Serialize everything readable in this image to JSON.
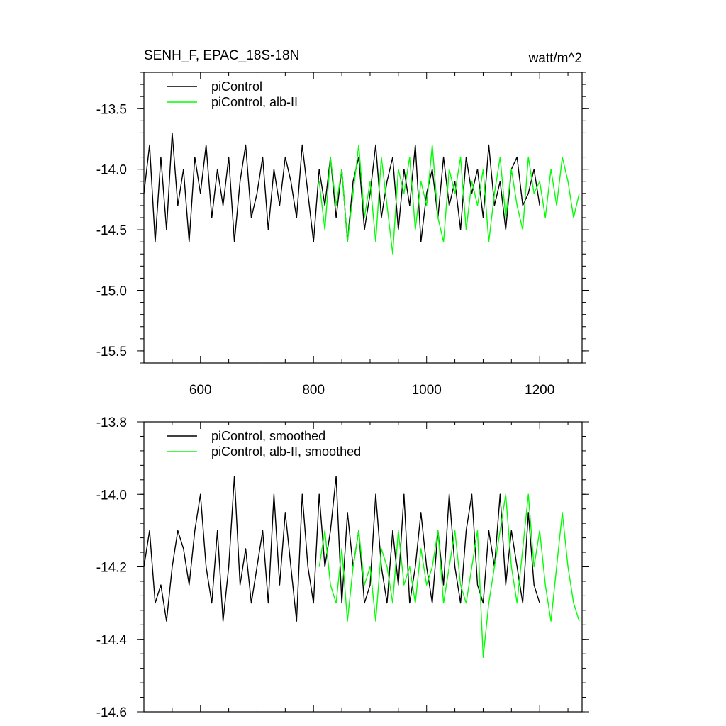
{
  "chart_data": [
    {
      "type": "line",
      "title": "SENH_F, EPAC_18S-18N",
      "units": "watt/m^2",
      "xlabel": "",
      "ylabel": "",
      "xlim": [
        500,
        1275
      ],
      "ylim": [
        -15.6,
        -13.2
      ],
      "xticks": [
        600,
        800,
        1000,
        1200
      ],
      "xtick_labels": [
        "600",
        "800",
        "1000",
        "1200"
      ],
      "yticks": [
        -13.5,
        -14.0,
        -14.5,
        -15.0,
        -15.5
      ],
      "ytick_labels": [
        "-13.5",
        "-14.0",
        "-14.5",
        "-15.0",
        "-15.5"
      ],
      "grid": false,
      "legend_position": "top-left",
      "series": [
        {
          "name": "piControl",
          "color": "#000000",
          "x": [
            500,
            510,
            520,
            530,
            540,
            550,
            560,
            570,
            580,
            590,
            600,
            610,
            620,
            630,
            640,
            650,
            660,
            670,
            680,
            690,
            700,
            710,
            720,
            730,
            740,
            750,
            760,
            770,
            780,
            790,
            800,
            810,
            820,
            830,
            840,
            850,
            860,
            870,
            880,
            890,
            900,
            910,
            920,
            930,
            940,
            950,
            960,
            970,
            980,
            990,
            1000,
            1010,
            1020,
            1030,
            1040,
            1050,
            1060,
            1070,
            1080,
            1090,
            1100,
            1110,
            1120,
            1130,
            1140,
            1150,
            1160,
            1170,
            1180,
            1190,
            1200
          ],
          "values": [
            -14.2,
            -13.8,
            -14.6,
            -13.9,
            -14.5,
            -13.7,
            -14.3,
            -14.0,
            -14.6,
            -13.9,
            -14.2,
            -13.8,
            -14.4,
            -14.0,
            -14.3,
            -13.9,
            -14.6,
            -14.1,
            -13.8,
            -14.4,
            -14.2,
            -13.9,
            -14.5,
            -14.0,
            -14.3,
            -13.9,
            -14.1,
            -14.4,
            -13.8,
            -14.2,
            -14.6,
            -14.0,
            -14.3,
            -13.9,
            -14.4,
            -14.0,
            -14.6,
            -14.1,
            -13.9,
            -14.5,
            -14.2,
            -13.8,
            -14.4,
            -14.1,
            -13.9,
            -14.5,
            -14.0,
            -14.3,
            -13.8,
            -14.6,
            -14.2,
            -14.0,
            -14.4,
            -13.9,
            -14.3,
            -14.1,
            -14.5,
            -13.9,
            -14.2,
            -14.0,
            -14.4,
            -13.8,
            -14.3,
            -14.1,
            -14.5,
            -14.0,
            -13.9,
            -14.3,
            -14.2,
            -14.0,
            -14.3
          ]
        },
        {
          "name": "piControl, alb-II",
          "color": "#00ff00",
          "x": [
            810,
            820,
            830,
            840,
            850,
            860,
            870,
            880,
            890,
            900,
            910,
            920,
            930,
            940,
            950,
            960,
            970,
            980,
            990,
            1000,
            1010,
            1020,
            1030,
            1040,
            1050,
            1060,
            1070,
            1080,
            1090,
            1100,
            1110,
            1120,
            1130,
            1140,
            1150,
            1160,
            1170,
            1180,
            1190,
            1200,
            1210,
            1220,
            1230,
            1240,
            1250,
            1260,
            1270
          ],
          "values": [
            -14.1,
            -14.5,
            -13.9,
            -14.3,
            -14.0,
            -14.6,
            -14.2,
            -13.8,
            -14.4,
            -14.1,
            -14.6,
            -13.9,
            -14.3,
            -14.7,
            -14.0,
            -14.2,
            -13.9,
            -14.5,
            -14.1,
            -14.3,
            -13.8,
            -14.4,
            -14.6,
            -14.0,
            -14.2,
            -13.9,
            -14.5,
            -14.1,
            -14.3,
            -14.0,
            -14.6,
            -14.2,
            -13.9,
            -14.4,
            -14.0,
            -14.3,
            -14.5,
            -13.9,
            -14.2,
            -14.1,
            -14.4,
            -14.0,
            -14.3,
            -13.9,
            -14.1,
            -14.4,
            -14.2
          ]
        }
      ]
    },
    {
      "type": "line",
      "title": "",
      "xlabel": "",
      "ylabel": "",
      "xlim": [
        500,
        1275
      ],
      "ylim": [
        -14.6,
        -13.8
      ],
      "xticks": [
        600,
        800,
        1000,
        1200
      ],
      "xtick_labels": [],
      "yticks": [
        -13.8,
        -14.0,
        -14.2,
        -14.4,
        -14.6
      ],
      "ytick_labels": [
        "-13.8",
        "-14.0",
        "-14.2",
        "-14.4",
        "-14.6"
      ],
      "grid": false,
      "legend_position": "top-left",
      "series": [
        {
          "name": "piControl, smoothed",
          "color": "#000000",
          "x": [
            500,
            510,
            520,
            530,
            540,
            550,
            560,
            570,
            580,
            590,
            600,
            610,
            620,
            630,
            640,
            650,
            660,
            670,
            680,
            690,
            700,
            710,
            720,
            730,
            740,
            750,
            760,
            770,
            780,
            790,
            800,
            810,
            820,
            830,
            840,
            850,
            860,
            870,
            880,
            890,
            900,
            910,
            920,
            930,
            940,
            950,
            960,
            970,
            980,
            990,
            1000,
            1010,
            1020,
            1030,
            1040,
            1050,
            1060,
            1070,
            1080,
            1090,
            1100,
            1110,
            1120,
            1130,
            1140,
            1150,
            1160,
            1170,
            1180,
            1190,
            1200
          ],
          "values": [
            -14.2,
            -14.1,
            -14.3,
            -14.25,
            -14.35,
            -14.2,
            -14.1,
            -14.15,
            -14.25,
            -14.1,
            -14.0,
            -14.2,
            -14.3,
            -14.1,
            -14.35,
            -14.2,
            -13.95,
            -14.25,
            -14.15,
            -14.3,
            -14.2,
            -14.1,
            -14.3,
            -14.0,
            -14.25,
            -14.05,
            -14.2,
            -14.35,
            -14.0,
            -14.2,
            -14.3,
            -14.0,
            -14.2,
            -14.1,
            -13.95,
            -14.3,
            -14.05,
            -14.2,
            -14.1,
            -14.3,
            -14.25,
            -14.0,
            -14.2,
            -14.3,
            -14.1,
            -14.25,
            -14.0,
            -14.3,
            -14.2,
            -14.05,
            -14.2,
            -14.3,
            -14.1,
            -14.25,
            -14.0,
            -14.2,
            -14.3,
            -14.1,
            -14.0,
            -14.25,
            -14.3,
            -14.1,
            -14.2,
            -14.0,
            -14.25,
            -14.1,
            -14.2,
            -14.3,
            -14.05,
            -14.25,
            -14.3
          ]
        },
        {
          "name": "piControl, alb-II, smoothed",
          "color": "#00ff00",
          "x": [
            810,
            820,
            830,
            840,
            850,
            860,
            870,
            880,
            890,
            900,
            910,
            920,
            930,
            940,
            950,
            960,
            970,
            980,
            990,
            1000,
            1010,
            1020,
            1030,
            1040,
            1050,
            1060,
            1070,
            1080,
            1090,
            1100,
            1110,
            1120,
            1130,
            1140,
            1150,
            1160,
            1170,
            1180,
            1190,
            1200,
            1210,
            1220,
            1230,
            1240,
            1250,
            1260,
            1270
          ],
          "values": [
            -14.2,
            -14.1,
            -14.25,
            -14.3,
            -14.15,
            -14.35,
            -14.2,
            -14.1,
            -14.25,
            -14.2,
            -14.35,
            -14.15,
            -14.2,
            -14.3,
            -14.1,
            -14.25,
            -14.2,
            -14.3,
            -14.15,
            -14.25,
            -14.2,
            -14.1,
            -14.3,
            -14.2,
            -14.1,
            -14.25,
            -14.3,
            -14.2,
            -14.1,
            -14.45,
            -14.3,
            -14.2,
            -14.1,
            -14.0,
            -14.2,
            -14.3,
            -14.15,
            -14.0,
            -14.2,
            -14.1,
            -14.25,
            -14.35,
            -14.2,
            -14.05,
            -14.2,
            -14.3,
            -14.35
          ]
        }
      ]
    }
  ]
}
